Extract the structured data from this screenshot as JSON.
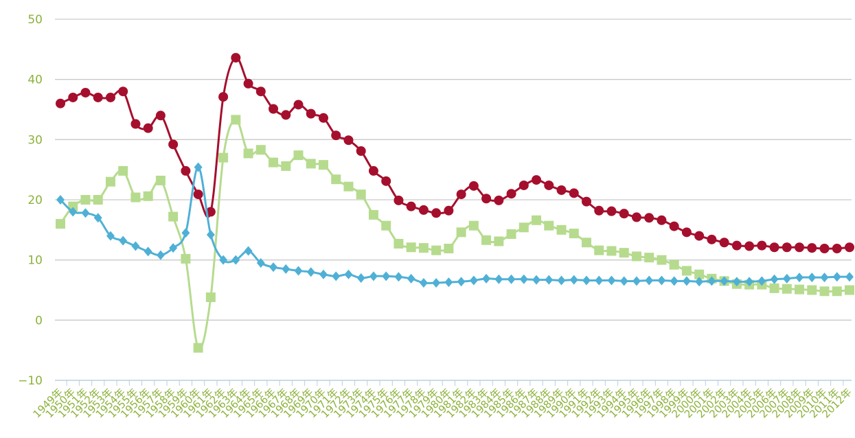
{
  "chart_data": {
    "type": "line",
    "title": "",
    "xlabel": "",
    "ylabel": "",
    "ylim": [
      -10,
      50
    ],
    "yticks": [
      -10,
      0,
      10,
      20,
      30,
      40,
      50
    ],
    "grid": true,
    "x": [
      "1949年",
      "1950年",
      "1951年",
      "1952年",
      "1953年",
      "1954年",
      "1955年",
      "1956年",
      "1957年",
      "1958年",
      "1959年",
      "1960年",
      "1961年",
      "1962年",
      "1963年",
      "1964年",
      "1965年",
      "1966年",
      "1967年",
      "1968年",
      "1969年",
      "1970年",
      "1971年",
      "1972年",
      "1973年",
      "1974年",
      "1975年",
      "1976年",
      "1977年",
      "1978年",
      "1979年",
      "1980年",
      "1981年",
      "1982年",
      "1983年",
      "1984年",
      "1985年",
      "1986年",
      "1987年",
      "1988年",
      "1989年",
      "1990年",
      "1991年",
      "1992年",
      "1993年",
      "1994年",
      "1995年",
      "1996年",
      "1997年",
      "1998年",
      "1999年",
      "2000年",
      "2001年",
      "2002年",
      "2003年",
      "2004年",
      "2005年",
      "2006年",
      "2007年",
      "2008年",
      "2009年",
      "2010年",
      "2011年",
      "2012年"
    ],
    "series": [
      {
        "color": "#a50f2d",
        "marker": "circle",
        "values": [
          36.0,
          37.0,
          37.8,
          37.0,
          37.0,
          38.0,
          32.6,
          31.9,
          34.0,
          29.2,
          24.8,
          20.9,
          18.0,
          37.1,
          43.6,
          39.3,
          38.0,
          35.1,
          34.1,
          35.8,
          34.3,
          33.6,
          30.7,
          29.9,
          28.1,
          24.8,
          23.1,
          19.9,
          18.9,
          18.3,
          17.8,
          18.2,
          20.9,
          22.3,
          20.2,
          19.9,
          21.0,
          22.4,
          23.3,
          22.4,
          21.6,
          21.1,
          19.7,
          18.2,
          18.1,
          17.7,
          17.1,
          17.0,
          16.6,
          15.6,
          14.6,
          14.0,
          13.4,
          12.9,
          12.4,
          12.3,
          12.4,
          12.1,
          12.1,
          12.1,
          12.0,
          11.9,
          11.9,
          12.1
        ]
      },
      {
        "color": "#b6db8e",
        "marker": "square",
        "values": [
          16.0,
          18.9,
          20.0,
          20.0,
          23.0,
          24.8,
          20.4,
          20.6,
          23.2,
          17.2,
          10.2,
          -4.6,
          3.8,
          27.0,
          33.3,
          27.7,
          28.3,
          26.2,
          25.6,
          27.4,
          26.0,
          25.8,
          23.4,
          22.2,
          20.9,
          17.5,
          15.7,
          12.7,
          12.1,
          12.0,
          11.6,
          11.9,
          14.6,
          15.7,
          13.3,
          13.1,
          14.3,
          15.4,
          16.6,
          15.7,
          15.0,
          14.4,
          12.9,
          11.6,
          11.5,
          11.2,
          10.6,
          10.4,
          10.0,
          9.2,
          8.2,
          7.6,
          6.9,
          6.5,
          6.0,
          5.9,
          5.9,
          5.3,
          5.2,
          5.1,
          5.0,
          4.8,
          4.8,
          5.0
        ]
      },
      {
        "color": "#4fb0d6",
        "marker": "diamond",
        "values": [
          20.0,
          18.0,
          17.8,
          17.0,
          14.0,
          13.2,
          12.3,
          11.4,
          10.8,
          12.0,
          14.5,
          25.4,
          14.2,
          10.0,
          10.0,
          11.5,
          9.5,
          8.8,
          8.5,
          8.2,
          8.0,
          7.6,
          7.3,
          7.6,
          7.0,
          7.3,
          7.3,
          7.2,
          6.9,
          6.2,
          6.2,
          6.3,
          6.4,
          6.6,
          6.9,
          6.8,
          6.8,
          6.8,
          6.7,
          6.7,
          6.6,
          6.7,
          6.6,
          6.6,
          6.6,
          6.5,
          6.5,
          6.6,
          6.6,
          6.5,
          6.5,
          6.4,
          6.5,
          6.5,
          6.4,
          6.4,
          6.5,
          6.8,
          6.9,
          7.1,
          7.1,
          7.1,
          7.2,
          7.2
        ]
      }
    ]
  }
}
